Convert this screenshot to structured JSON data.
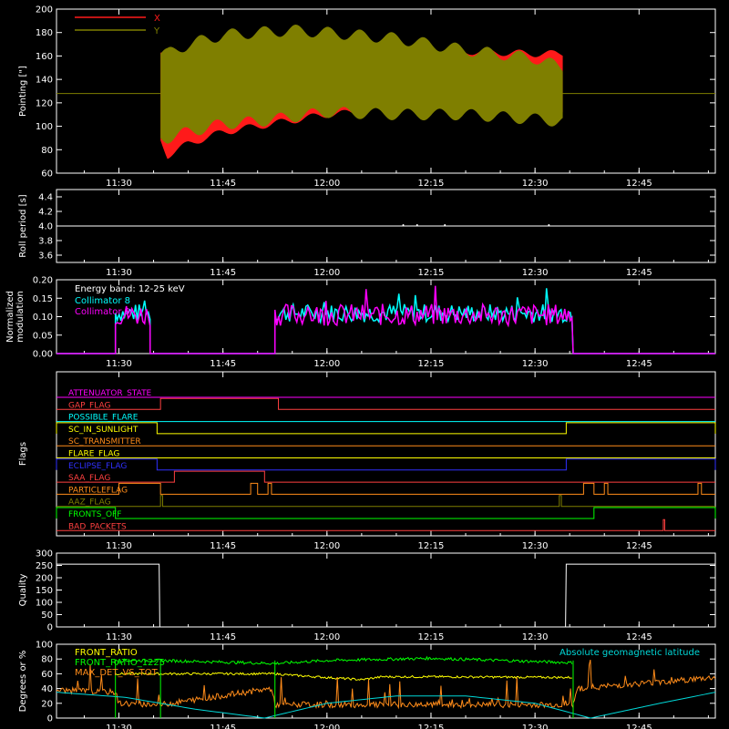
{
  "colors": {
    "background": "#000000",
    "axes": "#ffffff",
    "x": "#ff1a1a",
    "y": "#7f7f00",
    "c8": "#00ffff",
    "c9": "#ff00ff",
    "front_ratio": "#ffff00",
    "front_ratio_1225": "#00ff00",
    "max_det": "#ff8c1a",
    "geomag": "#00d8d8"
  },
  "time_axis": {
    "range": [
      "11:21",
      "12:56"
    ],
    "ticks": [
      "11:30",
      "11:45",
      "12:00",
      "12:15",
      "12:30",
      "12:45"
    ]
  },
  "chart_data": [
    {
      "type": "area",
      "ylabel": "Pointing [\"]",
      "ylim": [
        60,
        200
      ],
      "yticks": [
        60,
        80,
        100,
        120,
        140,
        160,
        180,
        200
      ],
      "legend_position": "top-left",
      "reference_line": 128,
      "series": [
        {
          "name": "X",
          "x": [
            "11:36",
            "11:37",
            "11:40",
            "11:45",
            "11:50",
            "11:55",
            "12:00",
            "12:10",
            "12:20",
            "12:30",
            "12:34"
          ],
          "lower": [
            88,
            75,
            85,
            95,
            100,
            105,
            110,
            114,
            114,
            114,
            110
          ],
          "upper": [
            163,
            158,
            162,
            165,
            168,
            170,
            172,
            168,
            164,
            162,
            162
          ]
        },
        {
          "name": "Y",
          "x": [
            "11:36",
            "11:37",
            "11:40",
            "11:45",
            "11:50",
            "11:55",
            "12:00",
            "12:10",
            "12:20",
            "12:30",
            "12:34"
          ],
          "lower": [
            90,
            90,
            95,
            102,
            104,
            108,
            112,
            110,
            110,
            106,
            104
          ],
          "upper": [
            162,
            162,
            170,
            178,
            180,
            182,
            180,
            175,
            165,
            158,
            150
          ]
        }
      ]
    },
    {
      "type": "line",
      "ylabel": "Roll period [s]",
      "ylim": [
        3.5,
        4.5
      ],
      "yticks": [
        "3.6",
        "3.8",
        "4.0",
        "4.2",
        "4.4"
      ],
      "value": 4.0
    },
    {
      "type": "bar",
      "ylabel": "Normalized modulation",
      "ylim": [
        0,
        0.2
      ],
      "yticks": [
        "0.00",
        "0.05",
        "0.10",
        "0.15",
        "0.20"
      ],
      "annotation": "Energy band: 12-25 keV",
      "legend_position": "top-left",
      "series": [
        {
          "name": "Collimator 8",
          "intervals": [
            [
              "11:29.5",
              "11:34.5"
            ],
            [
              "11:52.5",
              "12:35.5"
            ]
          ],
          "mean": 0.11,
          "spread": 0.05
        },
        {
          "name": "Collimator 9",
          "intervals": [
            [
              "11:29.5",
              "11:34.5"
            ],
            [
              "11:52.5",
              "12:35.5"
            ]
          ],
          "mean": 0.105,
          "spread": 0.06
        }
      ]
    },
    {
      "type": "line",
      "ylabel": "Flags",
      "flags": [
        {
          "name": "ATTENUATOR_STATE",
          "color": "#ff00ff",
          "segments": []
        },
        {
          "name": "GAP_FLAG",
          "color": "#ff4040",
          "segments": [
            [
              "11:36",
              "11:53"
            ]
          ]
        },
        {
          "name": "POSSIBLE_FLARE",
          "color": "#00ffff",
          "segments": []
        },
        {
          "name": "SC_IN_SUNLIGHT",
          "color": "#ffff00",
          "segments": [
            [
              "11:21",
              "11:35.5"
            ],
            [
              "12:34.5",
              "12:56"
            ]
          ]
        },
        {
          "name": "SC_TRANSMITTER",
          "color": "#ff8c1a",
          "segments": []
        },
        {
          "name": "FLARE_FLAG",
          "color": "#ffff00",
          "segments": []
        },
        {
          "name": "ECLIPSE_FLAG",
          "color": "#3030ff",
          "segments": [
            [
              "11:21",
              "11:35.5"
            ],
            [
              "12:34.5",
              "12:56"
            ]
          ]
        },
        {
          "name": "SAA_FLAG",
          "color": "#ff4040",
          "segments": [
            [
              "11:38",
              "11:51"
            ]
          ]
        },
        {
          "name": "PARTICLEFLAG",
          "color": "#ff8c1a",
          "segments": [
            [
              "11:30",
              "11:36"
            ],
            [
              "11:49",
              "11:50"
            ],
            [
              "11:51.5",
              "11:52"
            ],
            [
              "12:37",
              "12:38.5"
            ],
            [
              "12:40",
              "12:40.5"
            ],
            [
              "12:53.5",
              "12:54"
            ]
          ]
        },
        {
          "name": "AAZ_FLAG",
          "color": "#7f7f00",
          "segments": [
            [
              "11:36",
              "11:36.3"
            ],
            [
              "12:33.5",
              "12:33.8"
            ]
          ]
        },
        {
          "name": "FRONTS_OFF",
          "color": "#00ff00",
          "segments": [
            [
              "11:21",
              "11:29.5"
            ],
            [
              "12:38.5",
              "12:56"
            ]
          ]
        },
        {
          "name": "BAD_PACKETS",
          "color": "#ff4040",
          "segments": [
            [
              "12:48.5",
              "12:48.7"
            ]
          ]
        }
      ]
    },
    {
      "type": "line",
      "ylabel": "Quality",
      "ylim": [
        0,
        300
      ],
      "yticks": [
        0,
        50,
        100,
        150,
        200,
        250,
        300
      ],
      "x": [
        "11:21",
        "11:35.8",
        "11:35.9",
        "12:34.4",
        "12:34.5",
        "12:56"
      ],
      "values": [
        255,
        255,
        0,
        0,
        255,
        255
      ]
    },
    {
      "type": "line",
      "ylabel": "Degrees or %",
      "ylim": [
        0,
        100
      ],
      "yticks": [
        0,
        20,
        40,
        60,
        80,
        100
      ],
      "legend_position": "top-left",
      "annotation": "Absolute geomagnetic latitude",
      "series": [
        {
          "name": "FRONT_RATIO",
          "x": [
            "11:29.5",
            "11:36",
            "11:52.5",
            "11:55",
            "12:05",
            "12:08",
            "12:15",
            "12:35.5"
          ],
          "values": [
            60,
            60,
            60,
            58,
            52,
            56,
            56,
            55
          ]
        },
        {
          "name": "FRONT_RATIO_1225",
          "x": [
            "11:29.5",
            "11:36",
            "11:52.5",
            "12:00",
            "12:15",
            "12:35.5"
          ],
          "values": [
            78,
            78,
            74,
            78,
            81,
            75
          ]
        },
        {
          "name": "MAX_DET_VS_TOT",
          "x": [
            "11:21",
            "11:29.5",
            "11:30",
            "11:36",
            "11:52",
            "11:52.5",
            "12:20",
            "12:35.5",
            "12:36",
            "12:56"
          ],
          "values": [
            38,
            35,
            20,
            18,
            40,
            18,
            18,
            18,
            40,
            55
          ]
        },
        {
          "name": "Absolute geomagnetic latitude",
          "x": [
            "11:21",
            "11:31",
            "11:41",
            "11:51",
            "12:00",
            "12:10",
            "12:20",
            "12:30",
            "12:38",
            "12:48",
            "12:56"
          ],
          "values": [
            35,
            28,
            12,
            0,
            20,
            30,
            30,
            20,
            0,
            20,
            35
          ]
        }
      ]
    }
  ]
}
